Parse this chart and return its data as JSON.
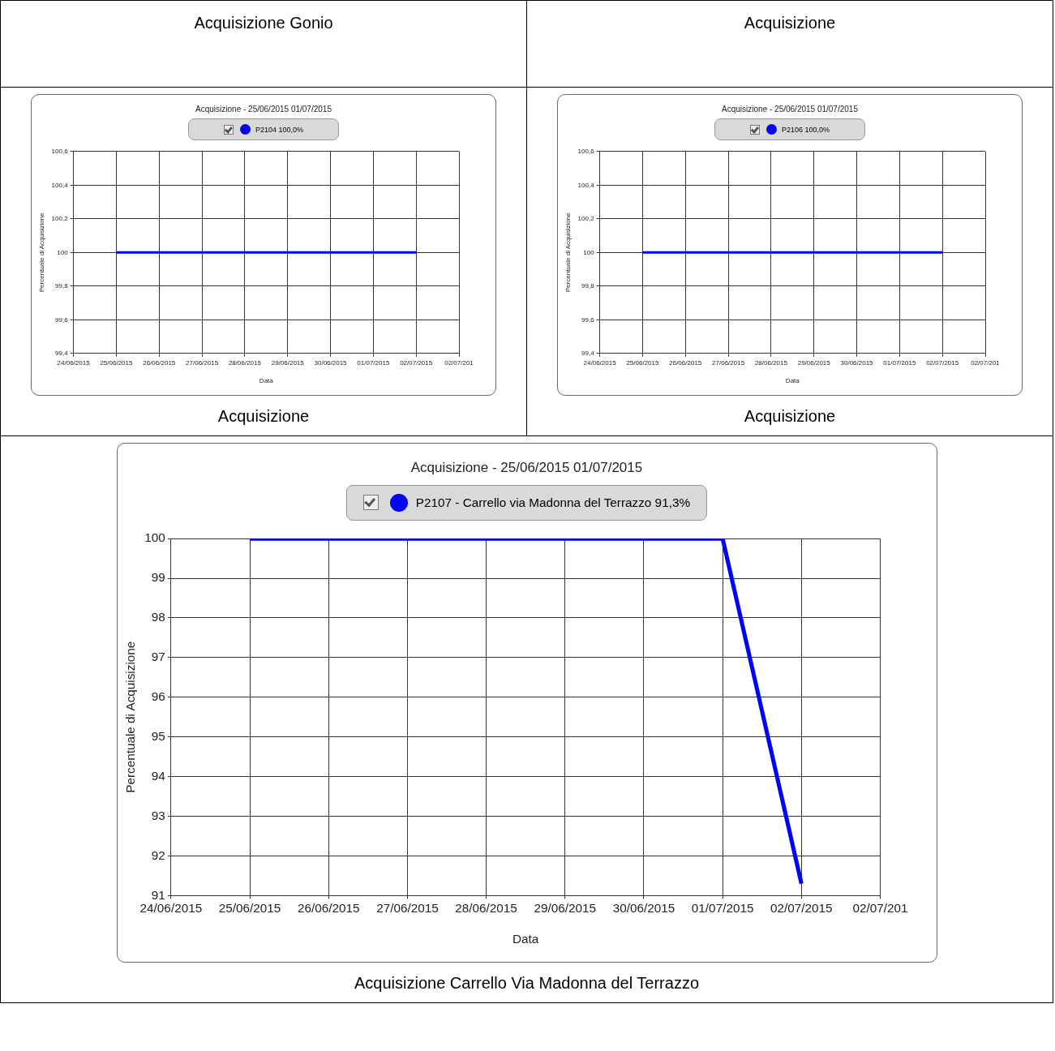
{
  "chart_data": [
    {
      "type": "other",
      "annotations": [
        "Acquisizione Gonio",
        "Acquisizione"
      ]
    },
    {
      "type": "line",
      "title": "Acquisizione - 25/06/2015 01/07/2015",
      "xlabel": "Data",
      "ylabel": "Percentuale di Acquisizione",
      "legend": "top",
      "marker": "none",
      "grid": true,
      "x": [
        "2015-06-25",
        "2015-07-02"
      ],
      "series": [
        {
          "name": "P2104 100,0%",
          "color": "#0000ff",
          "values": [
            100,
            100
          ]
        }
      ],
      "xlim": [
        "2015-06-24",
        "2015-07-03"
      ],
      "xticks": [
        {
          "value": "2015-06-24",
          "label": "24/06/2015"
        },
        {
          "value": "2015-06-25",
          "label": "25/06/2015"
        },
        {
          "value": "2015-06-26",
          "label": "26/06/2015"
        },
        {
          "value": "2015-06-27",
          "label": "27/06/2015"
        },
        {
          "value": "2015-06-28",
          "label": "28/06/2015"
        },
        {
          "value": "2015-06-29",
          "label": "29/06/2015"
        },
        {
          "value": "2015-06-30",
          "label": "30/06/2015"
        },
        {
          "value": "2015-07-01",
          "label": "01/07/2015"
        },
        {
          "value": "2015-07-02",
          "label": "02/07/2015"
        },
        {
          "value": "2015-07-03",
          "label": "02/07/201"
        }
      ],
      "ylim": [
        99.4,
        100.6
      ],
      "yticks": [
        {
          "value": 99.4,
          "label": "99,4"
        },
        {
          "value": 99.6,
          "label": "99,6"
        },
        {
          "value": 99.8,
          "label": "99,8"
        },
        100,
        {
          "value": 100.2,
          "label": "100,2"
        },
        {
          "value": 100.4,
          "label": "100,4"
        },
        {
          "value": 100.6,
          "label": "100,6"
        }
      ],
      "annotations": [
        "Acquisizione"
      ]
    },
    {
      "type": "line",
      "title": "Acquisizione - 25/06/2015 01/07/2015",
      "xlabel": "Data",
      "ylabel": "Percentuale di Acquisizione",
      "legend": "top",
      "marker": "none",
      "grid": true,
      "x": [
        "2015-06-25",
        "2015-07-02"
      ],
      "series": [
        {
          "name": "P2106 100,0%",
          "color": "#0000ff",
          "values": [
            100,
            100
          ]
        }
      ],
      "xlim": [
        "2015-06-24",
        "2015-07-03"
      ],
      "xticks": [
        {
          "value": "2015-06-24",
          "label": "24/06/2015"
        },
        {
          "value": "2015-06-25",
          "label": "25/06/2015"
        },
        {
          "value": "2015-06-26",
          "label": "26/06/2015"
        },
        {
          "value": "2015-06-27",
          "label": "27/06/2015"
        },
        {
          "value": "2015-06-28",
          "label": "28/06/2015"
        },
        {
          "value": "2015-06-29",
          "label": "29/06/2015"
        },
        {
          "value": "2015-06-30",
          "label": "30/06/2015"
        },
        {
          "value": "2015-07-01",
          "label": "01/07/2015"
        },
        {
          "value": "2015-07-02",
          "label": "02/07/2015"
        },
        {
          "value": "2015-07-03",
          "label": "02/07/201"
        }
      ],
      "ylim": [
        99.4,
        100.6
      ],
      "yticks": [
        {
          "value": 99.4,
          "label": "99,4"
        },
        {
          "value": 99.6,
          "label": "99,6"
        },
        {
          "value": 99.8,
          "label": "99,8"
        },
        100,
        {
          "value": 100.2,
          "label": "100,2"
        },
        {
          "value": 100.4,
          "label": "100,4"
        },
        {
          "value": 100.6,
          "label": "100,6"
        }
      ],
      "annotations": [
        "Acquisizione"
      ]
    },
    {
      "type": "line",
      "title": "Acquisizione - 25/06/2015 01/07/2015",
      "xlabel": "Data",
      "ylabel": "Percentuale di Acquisizione",
      "legend": "top",
      "marker": "none",
      "grid": true,
      "x": [
        "2015-06-25",
        "2015-07-01",
        "2015-07-02"
      ],
      "series": [
        {
          "name": "P2107 - Carrello via Madonna del Terrazzo 91,3%",
          "color": "#0000ff",
          "values": [
            100,
            100,
            91.3
          ]
        }
      ],
      "xlim": [
        "2015-06-24",
        "2015-07-03"
      ],
      "xticks": [
        {
          "value": "2015-06-24",
          "label": "24/06/2015"
        },
        {
          "value": "2015-06-25",
          "label": "25/06/2015"
        },
        {
          "value": "2015-06-26",
          "label": "26/06/2015"
        },
        {
          "value": "2015-06-27",
          "label": "27/06/2015"
        },
        {
          "value": "2015-06-28",
          "label": "28/06/2015"
        },
        {
          "value": "2015-06-29",
          "label": "29/06/2015"
        },
        {
          "value": "2015-06-30",
          "label": "30/06/2015"
        },
        {
          "value": "2015-07-01",
          "label": "01/07/2015"
        },
        {
          "value": "2015-07-02",
          "label": "02/07/2015"
        },
        {
          "value": "2015-07-03",
          "label": "02/07/201"
        }
      ],
      "ylim": [
        91,
        100
      ],
      "yticks": [
        91,
        92,
        93,
        94,
        95,
        96,
        97,
        98,
        99,
        100
      ],
      "annotations": [
        "Acquisizione Carrello Via Madonna del Terrazzo"
      ]
    }
  ]
}
